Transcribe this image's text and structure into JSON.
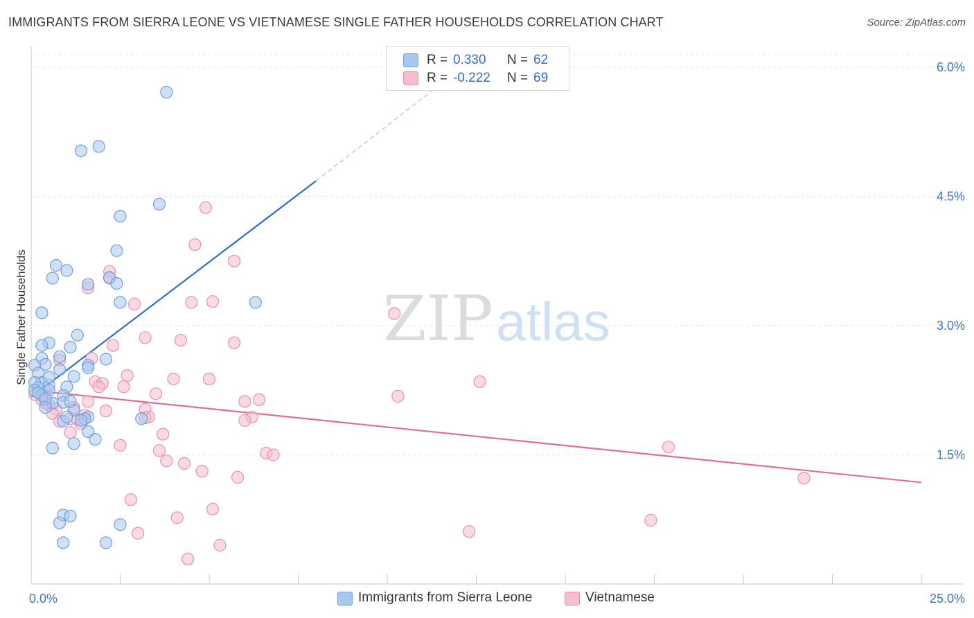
{
  "title": "IMMIGRANTS FROM SIERRA LEONE VS VIETNAMESE SINGLE FATHER HOUSEHOLDS CORRELATION CHART",
  "source": "Source: ZipAtlas.com",
  "watermark": {
    "zip": "ZIP",
    "atlas": "atlas"
  },
  "legend": {
    "r_label": "R =",
    "n_label": "N =",
    "series1": {
      "r": "0.330",
      "n": "62"
    },
    "series2": {
      "r": "-0.222",
      "n": "69"
    }
  },
  "colors": {
    "series1_fill": "#a9c8ef",
    "series1_stroke": "#6f9fde",
    "series1_line": "#2f6ec7",
    "series2_fill": "#f6bdd0",
    "series2_stroke": "#e98fae",
    "series2_line": "#e06d98",
    "tick_label": "#3e74c4",
    "grid": "#e3e3e3"
  },
  "chart_data": {
    "type": "scatter",
    "title": "IMMIGRANTS FROM SIERRA LEONE VS VIETNAMESE SINGLE FATHER HOUSEHOLDS CORRELATION CHART",
    "xlabel": "",
    "ylabel": "Single Father Households",
    "xlim": [
      0,
      25
    ],
    "ylim": [
      0,
      6.3
    ],
    "x_tick_labels": [
      "0.0%",
      "25.0%"
    ],
    "y_ticks": [
      1.5,
      3.0,
      4.5,
      6.0
    ],
    "y_tick_labels": [
      "1.5%",
      "3.0%",
      "4.5%",
      "6.0%"
    ],
    "grid": true,
    "legend_position": "top-center",
    "series": [
      {
        "name": "Immigrants from Sierra Leone",
        "r": 0.33,
        "n": 62,
        "trend": {
          "x0": 0,
          "y0": 2.17,
          "x1": 8.0,
          "y1": 4.68,
          "dashed_to_x": 11.8,
          "dashed_to_y": 5.9
        },
        "points": [
          [
            3.8,
            5.71
          ],
          [
            1.9,
            5.08
          ],
          [
            1.4,
            5.03
          ],
          [
            3.6,
            4.41
          ],
          [
            2.5,
            4.27
          ],
          [
            2.4,
            3.87
          ],
          [
            0.7,
            3.7
          ],
          [
            1.0,
            3.64
          ],
          [
            0.6,
            3.55
          ],
          [
            2.2,
            3.56
          ],
          [
            2.4,
            3.49
          ],
          [
            1.6,
            3.48
          ],
          [
            2.5,
            3.27
          ],
          [
            6.3,
            3.27
          ],
          [
            0.3,
            3.15
          ],
          [
            1.3,
            2.89
          ],
          [
            0.5,
            2.8
          ],
          [
            0.3,
            2.77
          ],
          [
            1.1,
            2.75
          ],
          [
            0.8,
            2.64
          ],
          [
            2.1,
            2.61
          ],
          [
            0.3,
            2.62
          ],
          [
            1.6,
            2.54
          ],
          [
            0.4,
            2.55
          ],
          [
            0.1,
            2.54
          ],
          [
            1.6,
            2.51
          ],
          [
            0.8,
            2.49
          ],
          [
            0.2,
            2.45
          ],
          [
            1.2,
            2.41
          ],
          [
            0.3,
            2.34
          ],
          [
            0.1,
            2.34
          ],
          [
            0.5,
            2.31
          ],
          [
            1.0,
            2.29
          ],
          [
            0.2,
            2.28
          ],
          [
            0.5,
            2.25
          ],
          [
            0.1,
            2.25
          ],
          [
            0.9,
            2.19
          ],
          [
            0.3,
            2.19
          ],
          [
            0.6,
            2.1
          ],
          [
            0.9,
            2.11
          ],
          [
            1.2,
            2.02
          ],
          [
            1.6,
            1.94
          ],
          [
            1.5,
            1.92
          ],
          [
            3.1,
            1.92
          ],
          [
            1.4,
            1.9
          ],
          [
            0.9,
            1.89
          ],
          [
            0.2,
            2.22
          ],
          [
            0.4,
            2.15
          ],
          [
            1.0,
            1.94
          ],
          [
            1.6,
            1.77
          ],
          [
            1.8,
            1.68
          ],
          [
            1.2,
            1.63
          ],
          [
            0.6,
            1.58
          ],
          [
            0.4,
            2.05
          ],
          [
            0.9,
            0.8
          ],
          [
            1.1,
            0.79
          ],
          [
            0.8,
            0.71
          ],
          [
            2.5,
            0.69
          ],
          [
            0.9,
            0.48
          ],
          [
            2.1,
            0.48
          ],
          [
            0.5,
            2.4
          ],
          [
            1.1,
            2.12
          ]
        ]
      },
      {
        "name": "Vietnamese",
        "r": -0.222,
        "n": 69,
        "trend": {
          "x0": 0,
          "y0": 2.25,
          "x1": 25,
          "y1": 1.18
        },
        "points": [
          [
            4.9,
            4.37
          ],
          [
            4.6,
            3.94
          ],
          [
            5.7,
            3.75
          ],
          [
            2.2,
            3.63
          ],
          [
            2.2,
            3.55
          ],
          [
            1.6,
            3.44
          ],
          [
            2.9,
            3.25
          ],
          [
            4.5,
            3.27
          ],
          [
            5.1,
            3.28
          ],
          [
            10.2,
            3.14
          ],
          [
            3.2,
            2.86
          ],
          [
            4.2,
            2.83
          ],
          [
            5.7,
            2.8
          ],
          [
            2.3,
            2.77
          ],
          [
            1.7,
            2.62
          ],
          [
            0.8,
            2.6
          ],
          [
            2.7,
            2.42
          ],
          [
            4.0,
            2.38
          ],
          [
            5.0,
            2.38
          ],
          [
            12.6,
            2.35
          ],
          [
            1.8,
            2.35
          ],
          [
            2.0,
            2.33
          ],
          [
            1.9,
            2.29
          ],
          [
            2.6,
            2.29
          ],
          [
            0.2,
            2.25
          ],
          [
            0.4,
            2.24
          ],
          [
            3.5,
            2.21
          ],
          [
            10.3,
            2.18
          ],
          [
            6.4,
            2.14
          ],
          [
            6.0,
            2.12
          ],
          [
            1.6,
            2.12
          ],
          [
            0.5,
            2.08
          ],
          [
            1.2,
            2.05
          ],
          [
            0.4,
            2.1
          ],
          [
            0.7,
            2.03
          ],
          [
            3.2,
            2.03
          ],
          [
            2.1,
            2.01
          ],
          [
            0.6,
            1.98
          ],
          [
            1.5,
            1.96
          ],
          [
            3.3,
            1.94
          ],
          [
            6.2,
            1.94
          ],
          [
            1.1,
            1.92
          ],
          [
            3.2,
            1.93
          ],
          [
            1.3,
            1.91
          ],
          [
            0.8,
            1.89
          ],
          [
            6.0,
            1.9
          ],
          [
            1.4,
            1.86
          ],
          [
            1.1,
            1.76
          ],
          [
            3.7,
            1.74
          ],
          [
            2.5,
            1.61
          ],
          [
            17.9,
            1.59
          ],
          [
            3.6,
            1.55
          ],
          [
            6.6,
            1.52
          ],
          [
            6.8,
            1.5
          ],
          [
            3.8,
            1.43
          ],
          [
            4.3,
            1.4
          ],
          [
            4.8,
            1.31
          ],
          [
            5.8,
            1.24
          ],
          [
            21.7,
            1.23
          ],
          [
            2.8,
            0.98
          ],
          [
            5.1,
            0.87
          ],
          [
            4.1,
            0.77
          ],
          [
            17.4,
            0.74
          ],
          [
            3.0,
            0.59
          ],
          [
            12.3,
            0.61
          ],
          [
            5.3,
            0.45
          ],
          [
            4.4,
            0.29
          ],
          [
            0.1,
            2.2
          ],
          [
            0.3,
            2.14
          ]
        ]
      }
    ],
    "bottom_legend": [
      "Immigrants from Sierra Leone",
      "Vietnamese"
    ]
  }
}
